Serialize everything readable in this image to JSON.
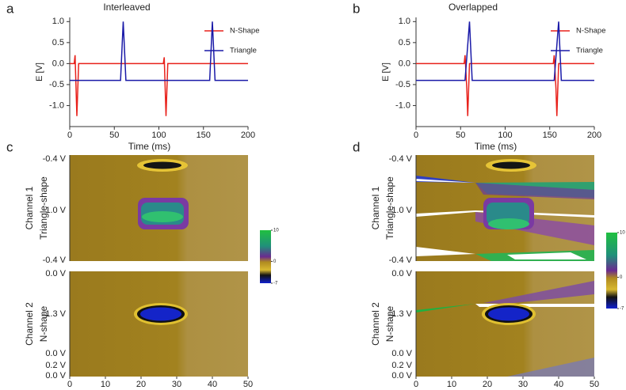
{
  "chart_data": [
    {
      "type": "line",
      "panel_label": "a",
      "title": "Interleaved",
      "xlabel": "Time (ms)",
      "ylabel": "E [V]",
      "x": [
        0,
        5,
        6,
        8,
        10,
        57,
        60,
        63,
        105,
        106,
        108,
        110,
        157,
        160,
        163,
        200
      ],
      "series": [
        {
          "name": "N-Shape",
          "color": "#e8211b",
          "values": [
            0,
            0,
            0.2,
            -1.25,
            0,
            0,
            0,
            0,
            0,
            0.15,
            -1.25,
            0,
            0,
            0,
            0,
            0
          ]
        },
        {
          "name": "Triangle",
          "color": "#1a1aa8",
          "values": [
            -0.4,
            -0.4,
            -0.4,
            -0.4,
            -0.4,
            -0.4,
            1.0,
            -0.4,
            -0.4,
            -0.4,
            -0.4,
            -0.4,
            -0.4,
            1.0,
            -0.4,
            -0.4
          ]
        }
      ],
      "xlim": [
        0,
        200
      ],
      "xticks": [
        0,
        50,
        100,
        150,
        200
      ],
      "ylim": [
        -1.5,
        1.1
      ],
      "yticks": [
        {
          "value": 1,
          "label": "1.0"
        },
        {
          "value": 0.5,
          "label": "0.5"
        },
        {
          "value": 0,
          "label": "0.0"
        },
        {
          "value": -0.5,
          "label": "-0.5"
        },
        {
          "value": -1,
          "label": "-1.0"
        }
      ],
      "legend": "upper right"
    },
    {
      "type": "line",
      "panel_label": "b",
      "title": "Overlapped",
      "xlabel": "Time (ms)",
      "ylabel": "E [V]",
      "x": [
        0,
        54,
        55,
        57,
        58,
        60,
        63,
        154,
        155,
        157,
        158,
        160,
        163,
        200
      ],
      "series": [
        {
          "name": "N-Shape",
          "color": "#e8211b",
          "values": [
            0,
            0,
            0.2,
            -0.6,
            -1.25,
            0,
            0,
            0,
            0.2,
            -0.6,
            -1.25,
            0,
            0,
            0
          ]
        },
        {
          "name": "Triangle",
          "color": "#1a1aa8",
          "values": [
            -0.4,
            -0.4,
            -0.4,
            0.16,
            0.44,
            1.0,
            -0.4,
            -0.4,
            -0.4,
            0.16,
            0.44,
            1.0,
            -0.4,
            -0.4
          ]
        }
      ],
      "xlim": [
        0,
        200
      ],
      "xticks": [
        0,
        50,
        100,
        150,
        200
      ],
      "ylim": [
        -1.5,
        1.1
      ],
      "yticks": [
        {
          "value": 1,
          "label": "1.0"
        },
        {
          "value": 0.5,
          "label": "0.5"
        },
        {
          "value": 0,
          "label": "0.0"
        },
        {
          "value": -0.5,
          "label": "-0.5"
        },
        {
          "value": -1,
          "label": "-1.0"
        }
      ],
      "legend": "upper right"
    },
    {
      "type": "heatmap",
      "panel_label": "c",
      "xlim": [
        0,
        50
      ],
      "xticks": [
        0,
        10,
        20,
        30,
        40,
        50
      ],
      "channels": [
        {
          "name": "Channel 1",
          "shape": "Triangle-shape",
          "yticks": [
            "-0.4 V",
            "1.0 V",
            "-0.4 V"
          ]
        },
        {
          "name": "Channel 2",
          "shape": "N-shape",
          "yticks": [
            "0.0 V",
            "-1.3 V",
            "0.0 V",
            "0.2 V",
            "0.0 V"
          ]
        }
      ],
      "colorbar": {
        "lim": [
          -7,
          10
        ],
        "ticks": [
          10,
          0,
          -7
        ]
      }
    },
    {
      "type": "heatmap",
      "panel_label": "d",
      "xlim": [
        0,
        50
      ],
      "xticks": [
        0,
        10,
        20,
        30,
        40,
        50
      ],
      "channels": [
        {
          "name": "Channel 1",
          "shape": "Triangle-shape",
          "yticks": [
            "-0.4 V",
            "1.0 V",
            "-0.4 V"
          ]
        },
        {
          "name": "Channel 2",
          "shape": "N-shape",
          "yticks": [
            "0.0 V",
            "-1.3 V",
            "0.0 V",
            "0.2 V",
            "0.0 V"
          ]
        }
      ],
      "colorbar": {
        "lim": [
          -7,
          10
        ],
        "ticks": [
          10,
          0,
          -7
        ]
      }
    }
  ]
}
